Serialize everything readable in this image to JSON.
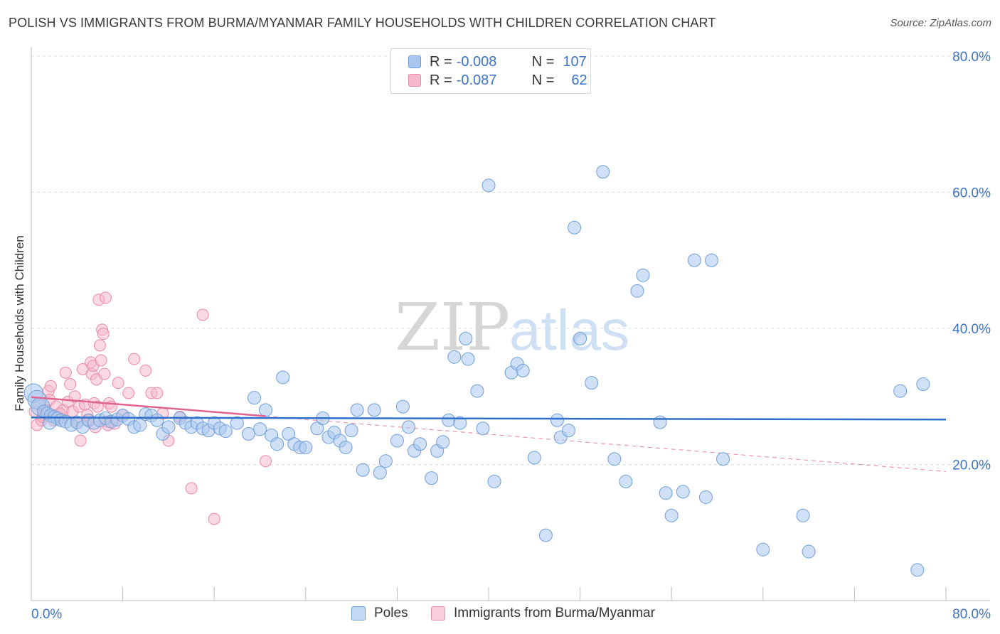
{
  "title": "POLISH VS IMMIGRANTS FROM BURMA/MYANMAR FAMILY HOUSEHOLDS WITH CHILDREN CORRELATION CHART",
  "source": "Source: ZipAtlas.com",
  "watermark": {
    "zip": "ZIP",
    "atlas": "atlas"
  },
  "legend_top": {
    "rows": [
      {
        "r_label": "R =",
        "r_value": "-0.008",
        "n_label": "N =",
        "n_value": "107"
      },
      {
        "r_label": "R =",
        "r_value": "-0.087",
        "n_label": "N =",
        "n_value": "62"
      }
    ]
  },
  "legend_bottom": {
    "series1": "Poles",
    "series2": "Immigrants from Burma/Myanmar"
  },
  "colors": {
    "blue_fill": "#a9c6ef",
    "blue_stroke": "#6f9fd8",
    "blue_line": "#2f6fcc",
    "pink_fill": "#f6b9cc",
    "pink_stroke": "#e98aa8",
    "pink_line": "#e0648f",
    "axis_text": "#3b74c9",
    "grid": "#dddddd"
  },
  "chart_data": {
    "type": "scatter",
    "title": "POLISH VS IMMIGRANTS FROM BURMA/MYANMAR FAMILY HOUSEHOLDS WITH CHILDREN CORRELATION CHART",
    "xlabel": "",
    "ylabel": "Family Households with Children",
    "xlim": [
      0,
      80
    ],
    "ylim": [
      0,
      80
    ],
    "x_tick_labels": [
      "0.0%",
      "80.0%"
    ],
    "y_tick_labels": [
      "20.0%",
      "40.0%",
      "60.0%",
      "80.0%"
    ],
    "y_ticks": [
      20,
      40,
      60,
      80
    ],
    "grid": true,
    "legend_position": "top-center",
    "series": [
      {
        "name": "Poles",
        "color": "#a9c6ef",
        "trend": {
          "x": [
            0,
            80
          ],
          "y": [
            26.9,
            26.6
          ]
        },
        "points": [
          [
            0.2,
            30.5
          ],
          [
            0.5,
            29.5
          ],
          [
            0.8,
            28.5
          ],
          [
            1.1,
            27.8
          ],
          [
            1.4,
            27.5
          ],
          [
            1.7,
            27.2
          ],
          [
            2,
            27
          ],
          [
            2.3,
            26.8
          ],
          [
            2.6,
            26.5
          ],
          [
            1.6,
            26.1
          ],
          [
            3,
            26.3
          ],
          [
            3.5,
            25.8
          ],
          [
            4,
            26.2
          ],
          [
            4.5,
            25.5
          ],
          [
            5,
            26.5
          ],
          [
            5.5,
            26.1
          ],
          [
            6,
            26.5
          ],
          [
            6.5,
            26.8
          ],
          [
            7,
            26.3
          ],
          [
            7.5,
            26.6
          ],
          [
            8,
            27.2
          ],
          [
            8.5,
            26.7
          ],
          [
            9,
            25.5
          ],
          [
            9.5,
            25.8
          ],
          [
            10,
            27.4
          ],
          [
            10.5,
            27.2
          ],
          [
            11,
            26.5
          ],
          [
            11.5,
            24.5
          ],
          [
            12,
            25.5
          ],
          [
            13,
            26.8
          ],
          [
            13.5,
            26.1
          ],
          [
            14,
            25.5
          ],
          [
            14.5,
            26.1
          ],
          [
            15,
            25.3
          ],
          [
            15.5,
            25.0
          ],
          [
            16,
            26.1
          ],
          [
            16.5,
            25.3
          ],
          [
            17,
            24.9
          ],
          [
            18,
            26.1
          ],
          [
            19,
            24.5
          ],
          [
            19.5,
            29.8
          ],
          [
            20,
            25.2
          ],
          [
            20.5,
            28.0
          ],
          [
            21,
            24.3
          ],
          [
            21.5,
            23.0
          ],
          [
            22,
            32.8
          ],
          [
            22.5,
            24.5
          ],
          [
            23,
            23.0
          ],
          [
            23.5,
            22.5
          ],
          [
            24,
            22.5
          ],
          [
            25,
            25.3
          ],
          [
            25.5,
            26.8
          ],
          [
            26,
            24.0
          ],
          [
            26.5,
            24.7
          ],
          [
            27,
            23.5
          ],
          [
            27.5,
            22.5
          ],
          [
            28,
            25.0
          ],
          [
            28.5,
            28.0
          ],
          [
            29,
            19.2
          ],
          [
            30,
            28.0
          ],
          [
            30.5,
            18.8
          ],
          [
            31,
            20.5
          ],
          [
            32,
            23.5
          ],
          [
            32.5,
            28.5
          ],
          [
            33,
            25.5
          ],
          [
            33.5,
            22.0
          ],
          [
            34,
            23.0
          ],
          [
            35,
            18.0
          ],
          [
            35.5,
            22.0
          ],
          [
            36,
            23.3
          ],
          [
            36.5,
            26.5
          ],
          [
            37,
            35.8
          ],
          [
            37.5,
            26.1
          ],
          [
            38,
            38.5
          ],
          [
            38.2,
            35.5
          ],
          [
            39,
            30.8
          ],
          [
            39.5,
            25.3
          ],
          [
            40,
            61.0
          ],
          [
            40.5,
            17.5
          ],
          [
            42,
            33.5
          ],
          [
            42.5,
            34.8
          ],
          [
            43,
            33.8
          ],
          [
            44,
            21.0
          ],
          [
            45,
            9.6
          ],
          [
            46,
            26.5
          ],
          [
            46.3,
            24.0
          ],
          [
            47,
            25.0
          ],
          [
            47.5,
            54.8
          ],
          [
            48,
            38.5
          ],
          [
            49,
            32.0
          ],
          [
            50,
            63.0
          ],
          [
            51,
            20.8
          ],
          [
            52,
            17.5
          ],
          [
            53,
            45.5
          ],
          [
            53.5,
            47.8
          ],
          [
            55,
            26.2
          ],
          [
            55.5,
            15.8
          ],
          [
            56,
            12.5
          ],
          [
            57,
            16.0
          ],
          [
            58,
            50.0
          ],
          [
            59,
            15.2
          ],
          [
            59.5,
            50.0
          ],
          [
            60.5,
            20.8
          ],
          [
            64,
            7.5
          ],
          [
            67.5,
            12.5
          ],
          [
            68,
            7.2
          ],
          [
            76,
            30.8
          ],
          [
            78,
            31.8
          ],
          [
            77.5,
            4.5
          ]
        ]
      },
      {
        "name": "Immigrants from Burma/Myanmar",
        "color": "#f6b9cc",
        "trend": {
          "x": [
            0,
            20.5
          ],
          "y": [
            29.9,
            27.1
          ]
        },
        "points": [
          [
            0.3,
            27.8
          ],
          [
            0.5,
            25.8
          ],
          [
            0.7,
            28.8
          ],
          [
            0.9,
            26.5
          ],
          [
            1.1,
            27.3
          ],
          [
            1.3,
            28.0
          ],
          [
            1.5,
            30.8
          ],
          [
            1.6,
            29.5
          ],
          [
            1.7,
            31.5
          ],
          [
            1.8,
            27.3
          ],
          [
            2.0,
            26.5
          ],
          [
            2.2,
            28.5
          ],
          [
            2.4,
            27.3
          ],
          [
            2.6,
            26.8
          ],
          [
            2.8,
            28.0
          ],
          [
            3.0,
            33.5
          ],
          [
            3.2,
            29.2
          ],
          [
            3.4,
            31.8
          ],
          [
            3.6,
            27.8
          ],
          [
            3.8,
            30.0
          ],
          [
            4.0,
            26.1
          ],
          [
            4.2,
            28.5
          ],
          [
            4.3,
            23.5
          ],
          [
            4.5,
            34.0
          ],
          [
            4.7,
            28.8
          ],
          [
            4.9,
            27.3
          ],
          [
            5.0,
            26.5
          ],
          [
            5.2,
            35.0
          ],
          [
            5.3,
            33.3
          ],
          [
            5.4,
            34.5
          ],
          [
            5.5,
            29.0
          ],
          [
            5.6,
            25.5
          ],
          [
            5.7,
            32.5
          ],
          [
            5.8,
            28.5
          ],
          [
            5.9,
            44.2
          ],
          [
            6.0,
            37.5
          ],
          [
            6.1,
            35.3
          ],
          [
            6.2,
            39.8
          ],
          [
            6.3,
            39.2
          ],
          [
            6.4,
            33.3
          ],
          [
            6.5,
            44.5
          ],
          [
            6.6,
            26.3
          ],
          [
            6.7,
            25.8
          ],
          [
            6.8,
            29.0
          ],
          [
            7.0,
            28.5
          ],
          [
            7.3,
            26.0
          ],
          [
            7.6,
            32.0
          ],
          [
            8.0,
            27.3
          ],
          [
            8.5,
            30.5
          ],
          [
            9.0,
            35.5
          ],
          [
            10.0,
            33.8
          ],
          [
            10.5,
            30.5
          ],
          [
            11.0,
            30.5
          ],
          [
            11.5,
            27.5
          ],
          [
            12.0,
            23.5
          ],
          [
            13.0,
            27.0
          ],
          [
            14.0,
            16.5
          ],
          [
            15.0,
            42.0
          ],
          [
            16.0,
            12.0
          ],
          [
            20.5,
            20.5
          ],
          [
            1.0,
            27.0
          ],
          [
            2.5,
            27.5
          ]
        ]
      }
    ]
  }
}
